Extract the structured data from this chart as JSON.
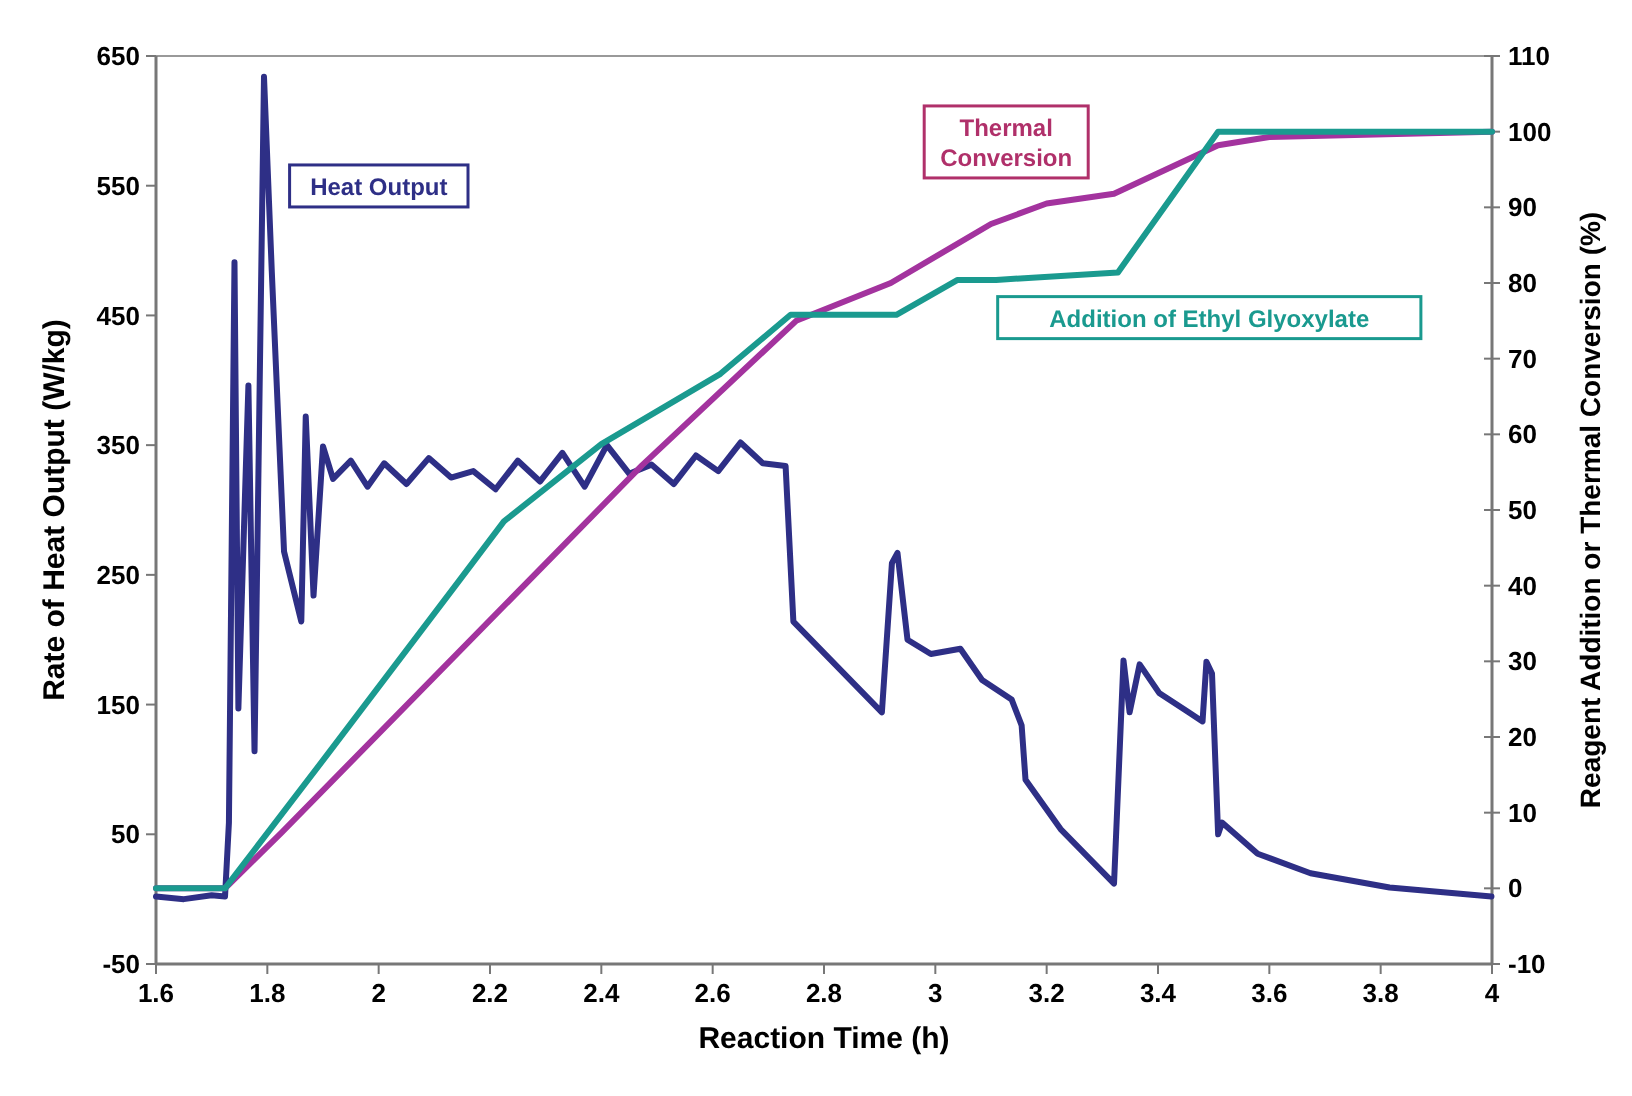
{
  "chart_data": {
    "type": "line",
    "xlabel": "Reaction Time (h)",
    "ylabel": "Rate of Heat Output (W/kg)",
    "y2label": "Reagent Addition or Thermal Conversion (%)",
    "xlim": [
      1.6,
      4
    ],
    "xticks": [
      1.6,
      1.8,
      2,
      2.2,
      2.4,
      2.6,
      2.8,
      3,
      3.2,
      3.4,
      3.6,
      3.8,
      4
    ],
    "ylim": [
      -50,
      650
    ],
    "yticks": [
      -50,
      50,
      150,
      250,
      350,
      450,
      550,
      650
    ],
    "y2lim": [
      -10,
      110
    ],
    "y2ticks": [
      -10,
      0,
      10,
      20,
      30,
      40,
      50,
      60,
      70,
      80,
      90,
      100,
      110
    ],
    "grid": false,
    "line_style": "solid",
    "series": [
      {
        "name": "Heat Output",
        "color": "#2e2f86",
        "x": [
          1.6,
          1.65,
          1.7,
          1.724,
          1.731,
          1.741,
          1.748,
          1.766,
          1.777,
          1.794,
          1.808,
          1.83,
          1.861,
          1.869,
          1.883,
          1.9,
          1.918,
          1.95,
          1.98,
          2.01,
          2.05,
          2.09,
          2.13,
          2.17,
          2.21,
          2.25,
          2.29,
          2.33,
          2.37,
          2.41,
          2.45,
          2.49,
          2.53,
          2.57,
          2.61,
          2.65,
          2.69,
          2.731,
          2.745,
          2.904,
          2.922,
          2.932,
          2.95,
          2.992,
          3.045,
          3.084,
          3.137,
          3.155,
          3.162,
          3.225,
          3.321,
          3.338,
          3.349,
          3.367,
          3.402,
          3.455,
          3.48,
          3.487,
          3.497,
          3.508,
          3.515,
          3.579,
          3.674,
          3.816,
          3.999
        ],
        "values": [
          2,
          0,
          3,
          2,
          59,
          491,
          147,
          396,
          114,
          634,
          484,
          268,
          214,
          372,
          234,
          349,
          324,
          338,
          318,
          336,
          320,
          340,
          325,
          330,
          316,
          338,
          322,
          344,
          318,
          350,
          328,
          335,
          320,
          342,
          330,
          352,
          336,
          334,
          214,
          144,
          259,
          267,
          200,
          189,
          193,
          169,
          154,
          134,
          92,
          54,
          12,
          184,
          144,
          181,
          159,
          144,
          137,
          183,
          174,
          50,
          59,
          35,
          20,
          9,
          2
        ]
      },
      {
        "name": "Thermal Conversion",
        "color": "#a3339e",
        "axis": "y2",
        "x": [
          1.6,
          1.724,
          1.79,
          1.826,
          2.473,
          2.75,
          2.92,
          3.1,
          3.2,
          3.321,
          3.4,
          3.508,
          3.6,
          4
        ],
        "values": [
          0,
          0,
          4.8,
          7.4,
          55.9,
          75,
          80,
          87.8,
          90.5,
          91.8,
          94.5,
          98.2,
          99.3,
          100
        ]
      },
      {
        "name": "Addition of Ethyl Glyoxylate",
        "color": "#1a9a8f",
        "axis": "y2",
        "x": [
          1.6,
          1.724,
          1.907,
          2.144,
          2.225,
          2.4,
          2.614,
          2.74,
          2.93,
          3.04,
          3.109,
          3.328,
          3.508,
          4
        ],
        "values": [
          0,
          0,
          17.6,
          40.6,
          48.5,
          58.7,
          68,
          75.8,
          75.8,
          80.4,
          80.4,
          81.4,
          100,
          100
        ]
      }
    ]
  }
}
